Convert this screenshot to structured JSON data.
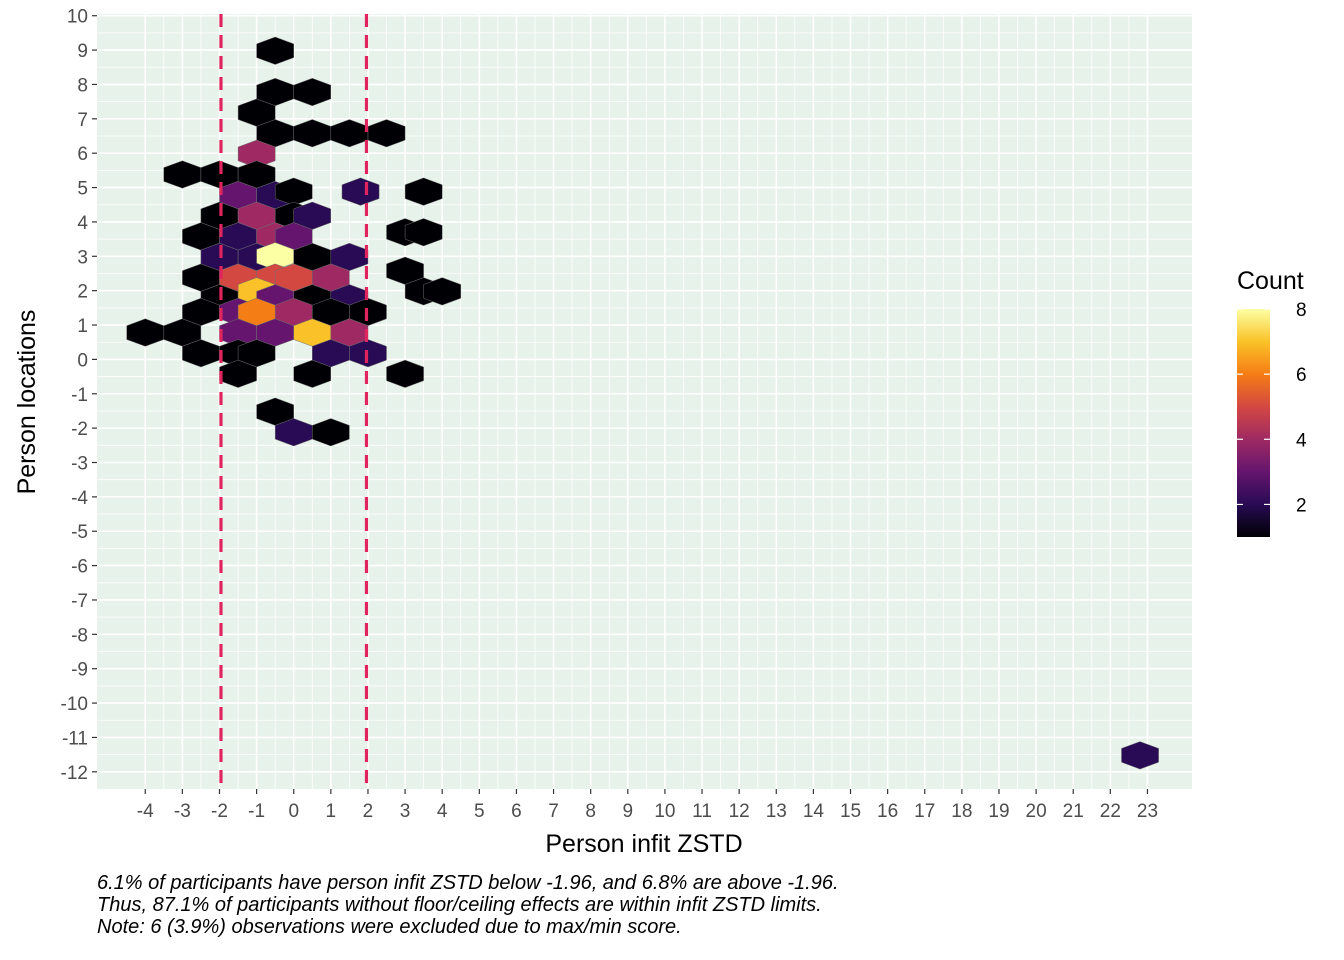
{
  "chart_data": {
    "type": "hexbin",
    "xlabel": "Person infit ZSTD",
    "ylabel": "Person locations",
    "xlim": [
      -5.3,
      24.2
    ],
    "ylim": [
      -12.5,
      10.05
    ],
    "x_ticks": [
      "-4",
      "-3",
      "-2",
      "-1",
      "0",
      "1",
      "2",
      "3",
      "4",
      "5",
      "6",
      "7",
      "8",
      "9",
      "10",
      "11",
      "12",
      "13",
      "14",
      "15",
      "16",
      "17",
      "18",
      "19",
      "20",
      "21",
      "22",
      "23"
    ],
    "y_ticks": [
      "10",
      "9",
      "8",
      "7",
      "6",
      "5",
      "4",
      "3",
      "2",
      "1",
      "0",
      "-1",
      "-2",
      "-3",
      "-4",
      "-5",
      "-6",
      "-7",
      "-8",
      "-9",
      "-10",
      "-11",
      "-12"
    ],
    "reference_lines": [
      {
        "x": -1.96,
        "color": "#e0245e",
        "style": "dashed"
      },
      {
        "x": 1.96,
        "color": "#e0245e",
        "style": "dashed"
      }
    ],
    "legend": {
      "title": "Count",
      "min": 1,
      "max": 8,
      "labels": [
        "8",
        "6",
        "4",
        "2"
      ]
    },
    "hexagons": [
      {
        "x": -0.5,
        "y": 8.98,
        "count": 1
      },
      {
        "x": -0.5,
        "y": 7.78,
        "count": 1
      },
      {
        "x": 0.5,
        "y": 7.78,
        "count": 1
      },
      {
        "x": -1.0,
        "y": 7.18,
        "count": 1
      },
      {
        "x": -0.5,
        "y": 6.58,
        "count": 1
      },
      {
        "x": 0.5,
        "y": 6.58,
        "count": 1
      },
      {
        "x": 1.5,
        "y": 6.58,
        "count": 1
      },
      {
        "x": 2.5,
        "y": 6.58,
        "count": 1
      },
      {
        "x": -1.0,
        "y": 5.98,
        "count": 4
      },
      {
        "x": -3.0,
        "y": 5.38,
        "count": 1
      },
      {
        "x": -2.0,
        "y": 5.38,
        "count": 1
      },
      {
        "x": -1.0,
        "y": 5.38,
        "count": 1
      },
      {
        "x": -1.5,
        "y": 4.78,
        "count": 3
      },
      {
        "x": -0.5,
        "y": 4.78,
        "count": 2
      },
      {
        "x": 0.0,
        "y": 4.88,
        "count": 1
      },
      {
        "x": 1.8,
        "y": 4.88,
        "count": 2
      },
      {
        "x": 3.5,
        "y": 4.88,
        "count": 1
      },
      {
        "x": -2.0,
        "y": 4.18,
        "count": 1
      },
      {
        "x": -1.0,
        "y": 4.18,
        "count": 4
      },
      {
        "x": 0.0,
        "y": 4.18,
        "count": 1
      },
      {
        "x": 0.5,
        "y": 4.18,
        "count": 2
      },
      {
        "x": -2.5,
        "y": 3.58,
        "count": 1
      },
      {
        "x": -1.5,
        "y": 3.58,
        "count": 2
      },
      {
        "x": -0.5,
        "y": 3.58,
        "count": 4
      },
      {
        "x": 0.0,
        "y": 3.58,
        "count": 3
      },
      {
        "x": 3.0,
        "y": 3.7,
        "count": 1
      },
      {
        "x": 3.5,
        "y": 3.7,
        "count": 1
      },
      {
        "x": -2.0,
        "y": 2.98,
        "count": 2
      },
      {
        "x": -1.0,
        "y": 2.98,
        "count": 2
      },
      {
        "x": -0.5,
        "y": 3.0,
        "count": 8
      },
      {
        "x": 0.5,
        "y": 2.98,
        "count": 1
      },
      {
        "x": 1.5,
        "y": 2.98,
        "count": 2
      },
      {
        "x": -2.5,
        "y": 2.38,
        "count": 1
      },
      {
        "x": -1.5,
        "y": 2.38,
        "count": 5
      },
      {
        "x": -0.5,
        "y": 2.38,
        "count": 5
      },
      {
        "x": 0.0,
        "y": 2.38,
        "count": 5
      },
      {
        "x": 1.0,
        "y": 2.38,
        "count": 4
      },
      {
        "x": 3.0,
        "y": 2.58,
        "count": 1
      },
      {
        "x": -2.0,
        "y": 1.78,
        "count": 1
      },
      {
        "x": -1.0,
        "y": 1.98,
        "count": 7
      },
      {
        "x": -0.5,
        "y": 1.78,
        "count": 3
      },
      {
        "x": 0.5,
        "y": 1.78,
        "count": 1
      },
      {
        "x": 1.5,
        "y": 1.78,
        "count": 2
      },
      {
        "x": 3.5,
        "y": 1.98,
        "count": 1
      },
      {
        "x": 4.0,
        "y": 1.98,
        "count": 1
      },
      {
        "x": -2.5,
        "y": 1.38,
        "count": 1
      },
      {
        "x": -1.5,
        "y": 1.38,
        "count": 3
      },
      {
        "x": -1.0,
        "y": 1.38,
        "count": 6
      },
      {
        "x": 0.0,
        "y": 1.38,
        "count": 4
      },
      {
        "x": 1.0,
        "y": 1.38,
        "count": 1
      },
      {
        "x": 2.0,
        "y": 1.38,
        "count": 1
      },
      {
        "x": -4.0,
        "y": 0.78,
        "count": 1
      },
      {
        "x": -3.0,
        "y": 0.78,
        "count": 1
      },
      {
        "x": -1.5,
        "y": 0.78,
        "count": 3
      },
      {
        "x": -0.5,
        "y": 0.78,
        "count": 3
      },
      {
        "x": 0.5,
        "y": 0.78,
        "count": 7
      },
      {
        "x": 1.5,
        "y": 0.78,
        "count": 4
      },
      {
        "x": -2.5,
        "y": 0.18,
        "count": 1
      },
      {
        "x": -1.5,
        "y": 0.18,
        "count": 1
      },
      {
        "x": -1.0,
        "y": 0.18,
        "count": 1
      },
      {
        "x": 1.0,
        "y": 0.18,
        "count": 2
      },
      {
        "x": 2.0,
        "y": 0.18,
        "count": 2
      },
      {
        "x": -1.5,
        "y": -0.42,
        "count": 1
      },
      {
        "x": 0.5,
        "y": -0.42,
        "count": 1
      },
      {
        "x": 3.0,
        "y": -0.42,
        "count": 1
      },
      {
        "x": -0.5,
        "y": -1.52,
        "count": 1
      },
      {
        "x": 0.0,
        "y": -2.12,
        "count": 2
      },
      {
        "x": 1.0,
        "y": -2.12,
        "count": 1
      },
      {
        "x": 22.8,
        "y": -11.52,
        "count": 2
      }
    ]
  },
  "caption": {
    "line1": "6.1% of participants have person infit ZSTD below -1.96, and 6.8% are above -1.96.",
    "line2": "Thus, 87.1% of participants without floor/ceiling effects are within infit ZSTD limits.",
    "line3": "Note: 6 (3.9%) observations were excluded due to max/min score."
  },
  "colors": {
    "panel_background": "#e7f2ea",
    "grid": "#ffffff",
    "reference_line": "#e0245e",
    "scale": [
      "#000004",
      "#280b54",
      "#65156e",
      "#9f2a63",
      "#d44842",
      "#f57d15",
      "#fac228",
      "#fcffa4"
    ]
  }
}
